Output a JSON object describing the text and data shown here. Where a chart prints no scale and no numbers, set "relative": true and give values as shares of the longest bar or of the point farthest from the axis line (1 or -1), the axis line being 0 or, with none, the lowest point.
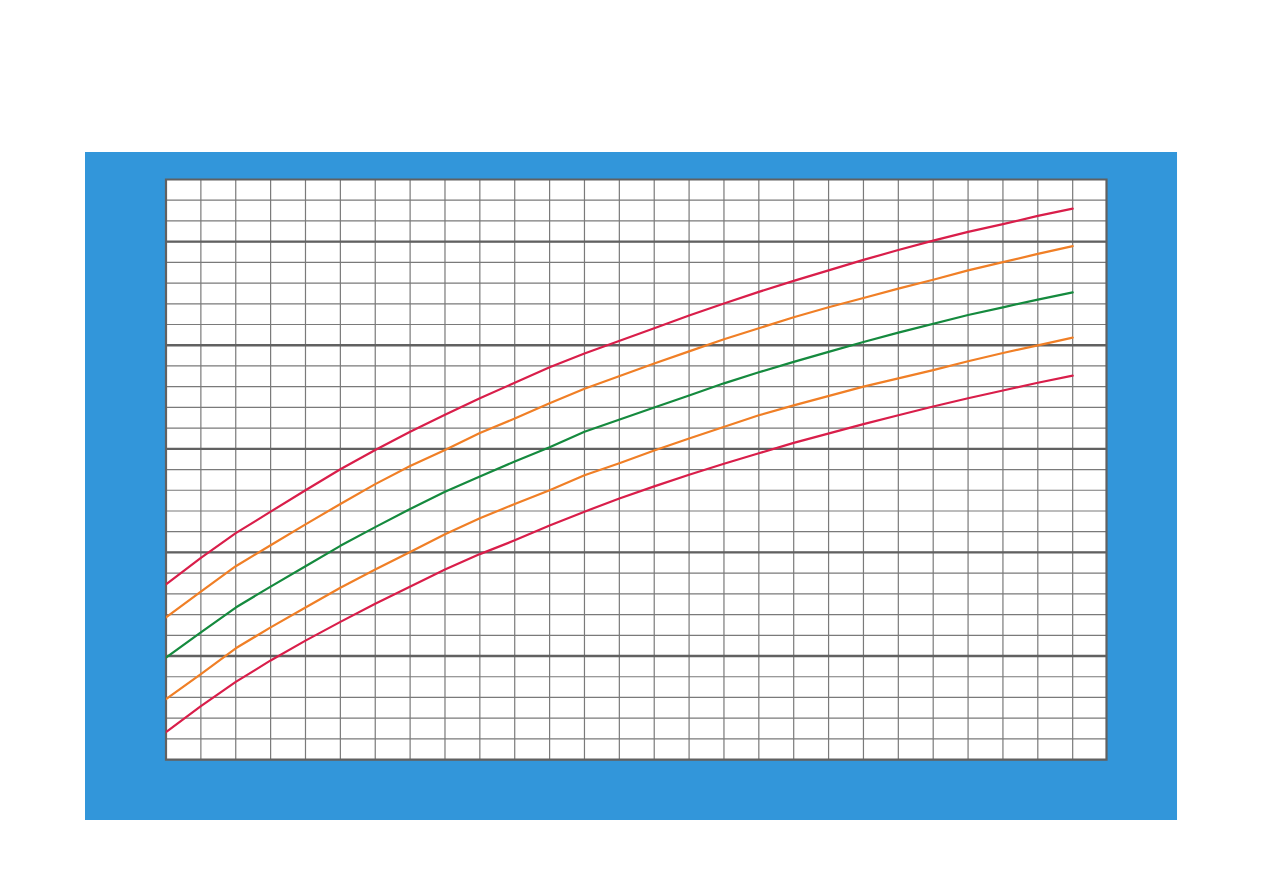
{
  "chart_data": {
    "type": "line",
    "relative": true,
    "categories": [
      null,
      null,
      null,
      null,
      null,
      null,
      null,
      null,
      null,
      null,
      null,
      null,
      null,
      null,
      null,
      null,
      null,
      null,
      null,
      null,
      null,
      null,
      null,
      null,
      null,
      null,
      null
    ],
    "series": [
      {
        "color": "#d91e4a",
        "values": [
          0.318,
          0.366,
          0.411,
          0.45,
          0.489,
          0.527,
          0.562,
          0.595,
          0.626,
          0.656,
          0.684,
          0.712,
          0.737,
          0.76,
          0.783,
          0.806,
          0.828,
          0.849,
          0.869,
          0.888,
          0.907,
          0.925,
          0.942,
          0.958,
          0.972,
          0.987,
          1.0
        ]
      },
      {
        "color": "#f07f26",
        "values": [
          0.258,
          0.305,
          0.351,
          0.389,
          0.427,
          0.464,
          0.5,
          0.533,
          0.562,
          0.593,
          0.619,
          0.647,
          0.673,
          0.696,
          0.719,
          0.741,
          0.763,
          0.783,
          0.803,
          0.821,
          0.838,
          0.855,
          0.871,
          0.888,
          0.903,
          0.918,
          0.932
        ]
      },
      {
        "color": "#158a3e",
        "values": [
          0.185,
          0.231,
          0.276,
          0.314,
          0.351,
          0.388,
          0.422,
          0.455,
          0.486,
          0.514,
          0.541,
          0.567,
          0.595,
          0.617,
          0.639,
          0.661,
          0.683,
          0.703,
          0.722,
          0.74,
          0.758,
          0.775,
          0.791,
          0.807,
          0.821,
          0.835,
          0.848
        ]
      },
      {
        "color": "#f07f26",
        "values": [
          0.11,
          0.155,
          0.202,
          0.24,
          0.276,
          0.312,
          0.345,
          0.377,
          0.409,
          0.438,
          0.464,
          0.489,
          0.516,
          0.538,
          0.561,
          0.583,
          0.604,
          0.625,
          0.643,
          0.66,
          0.677,
          0.692,
          0.707,
          0.723,
          0.738,
          0.752,
          0.766
        ]
      },
      {
        "color": "#d91e4a",
        "values": [
          0.05,
          0.097,
          0.141,
          0.18,
          0.216,
          0.25,
          0.283,
          0.314,
          0.345,
          0.373,
          0.398,
          0.425,
          0.45,
          0.474,
          0.496,
          0.517,
          0.537,
          0.556,
          0.575,
          0.592,
          0.609,
          0.625,
          0.641,
          0.656,
          0.67,
          0.684,
          0.697
        ]
      }
    ],
    "grid": true,
    "line_style": "solid"
  }
}
